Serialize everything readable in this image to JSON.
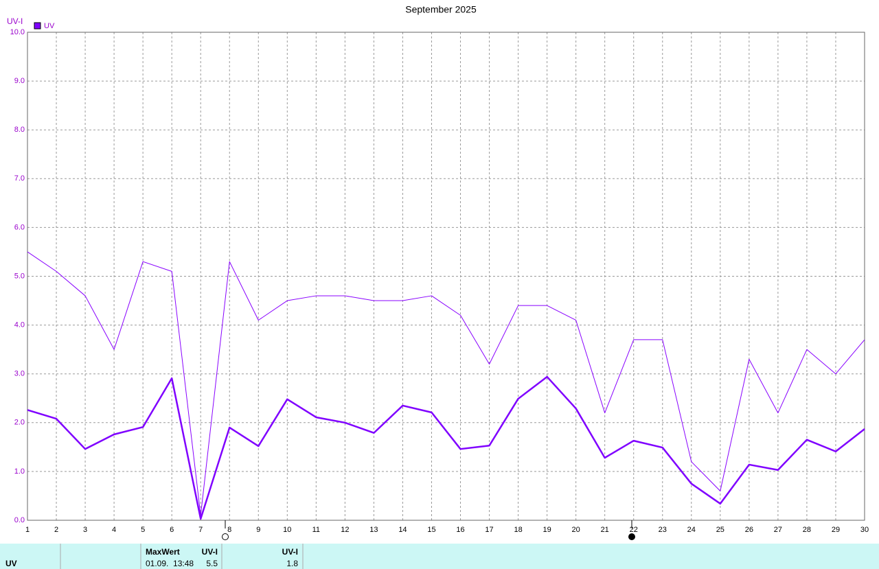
{
  "chart_data": {
    "type": "line",
    "title": "September 2025",
    "y_label": "UV-I",
    "x": [
      1,
      2,
      3,
      4,
      5,
      6,
      7,
      8,
      9,
      10,
      11,
      12,
      13,
      14,
      15,
      16,
      17,
      18,
      19,
      20,
      21,
      22,
      23,
      24,
      25,
      26,
      27,
      28,
      29,
      30
    ],
    "xlim": [
      1,
      30
    ],
    "xticks": [
      1,
      2,
      3,
      4,
      5,
      6,
      7,
      8,
      9,
      10,
      11,
      12,
      13,
      14,
      15,
      16,
      17,
      18,
      19,
      20,
      21,
      22,
      23,
      24,
      25,
      26,
      27,
      28,
      29,
      30
    ],
    "ylim": [
      0,
      10
    ],
    "yticks": [
      {
        "value": 0,
        "label": "0.0"
      },
      {
        "value": 1,
        "label": "1.0"
      },
      {
        "value": 2,
        "label": "2.0"
      },
      {
        "value": 3,
        "label": "3.0"
      },
      {
        "value": 4,
        "label": "4.0"
      },
      {
        "value": 5,
        "label": "5.0"
      },
      {
        "value": 6,
        "label": "6.0"
      },
      {
        "value": 7,
        "label": "7.0"
      },
      {
        "value": 8,
        "label": "8.0"
      },
      {
        "value": 9,
        "label": "9.0"
      },
      {
        "value": 10,
        "label": "10.0"
      }
    ],
    "grid": true,
    "legend": "top-left",
    "series": [
      {
        "name": "UV",
        "color": "#7f00ff",
        "width": 2.5,
        "values": [
          2.26,
          2.08,
          1.46,
          1.76,
          1.91,
          2.91,
          0.03,
          1.9,
          1.52,
          2.48,
          2.11,
          2.0,
          1.79,
          2.35,
          2.21,
          1.46,
          1.53,
          2.49,
          2.94,
          2.29,
          1.28,
          1.63,
          1.49,
          0.75,
          0.34,
          1.14,
          1.03,
          1.65,
          1.41,
          1.87
        ]
      },
      {
        "color": "#8800ff",
        "width": 1,
        "values": [
          5.5,
          5.1,
          4.6,
          3.5,
          5.3,
          5.1,
          0.1,
          5.3,
          4.1,
          4.5,
          4.6,
          4.6,
          4.5,
          4.5,
          4.6,
          4.2,
          3.2,
          4.4,
          4.4,
          4.1,
          2.2,
          3.7,
          3.7,
          1.2,
          0.6,
          3.3,
          2.2,
          3.5,
          3.0,
          3.7
        ]
      }
    ]
  },
  "footer": {
    "row_label": "UV",
    "max_header": "MaxWert",
    "max_unit": "UV-I",
    "max_time": "01.09.  13:48",
    "max_value": "5.5",
    "avg_unit": "UV-I",
    "avg_value": "1.8"
  }
}
